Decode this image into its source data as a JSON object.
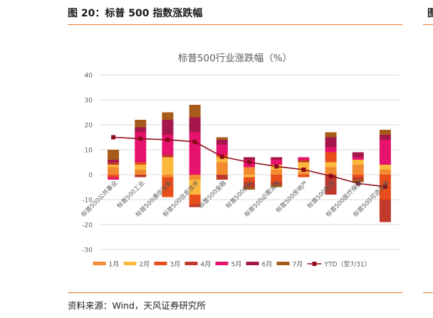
{
  "figure": {
    "title": "图 20：标普 500 指数涨跌幅",
    "right_fragment": "图",
    "source": "资料来源：Wind，天风证券研究所"
  },
  "chart_data": {
    "type": "bar",
    "stacked": true,
    "title": "标普500行业涨跌幅（%）",
    "xlabel": "",
    "ylabel": "",
    "ylim": [
      -30,
      40
    ],
    "yticks": [
      40,
      30,
      20,
      10,
      0,
      -10,
      -20,
      -30
    ],
    "grid": true,
    "legend_position": "bottom",
    "categories": [
      "标普500公共事业",
      "标普500工业",
      "标普500通信设备",
      "标普500信息技术",
      "标普500金融",
      "标普500材料",
      "标普500必需消费",
      "标普500房地产",
      "标普500能源",
      "标普500医疗保健",
      "标普500可选消费"
    ],
    "series": [
      {
        "name": "1月",
        "color": "#f28b30",
        "values": [
          3,
          2,
          -1,
          -2,
          5,
          3,
          2,
          1,
          3,
          4,
          2
        ]
      },
      {
        "name": "2月",
        "color": "#fbb83c",
        "values": [
          1,
          2,
          7,
          -6,
          2,
          -1,
          2,
          4,
          2,
          2,
          2
        ]
      },
      {
        "name": "3月",
        "color": "#e84e1b",
        "values": [
          -1,
          1,
          -8,
          -4,
          1,
          -2,
          -3,
          -1,
          4,
          -1,
          -10
        ]
      },
      {
        "name": "4月",
        "color": "#c0392b",
        "values": [
          1,
          -1,
          1,
          -1,
          -2,
          -2,
          -1,
          1,
          -8,
          -1,
          -9
        ]
      },
      {
        "name": "5月",
        "color": "#e6136e",
        "values": [
          -1,
          12,
          8,
          17,
          4,
          3,
          2,
          1,
          2,
          1,
          10
        ]
      },
      {
        "name": "6月",
        "color": "#a5174b",
        "values": [
          1,
          2,
          6,
          6,
          2,
          1,
          1,
          0,
          4,
          2,
          2
        ]
      },
      {
        "name": "7月",
        "color": "#a75b1a",
        "values": [
          4,
          3,
          3,
          5,
          1,
          -1,
          -1,
          0,
          2,
          -1,
          2
        ]
      }
    ],
    "ytd": {
      "name": "YTD（至7/31）",
      "color": "#8b0b1a",
      "values": [
        15,
        14.4,
        14,
        13.2,
        7.2,
        5,
        3.3,
        2,
        -0.5,
        -3.5,
        -4.8
      ]
    }
  }
}
